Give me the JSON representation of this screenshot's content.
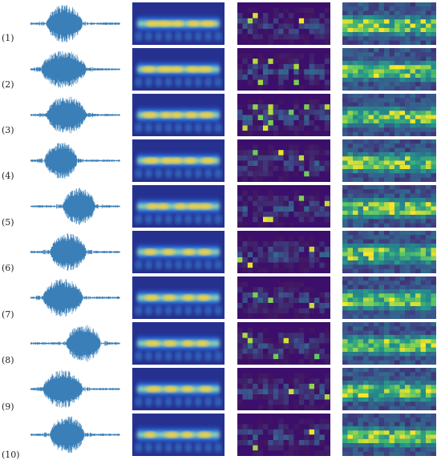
{
  "figure": {
    "rows": [
      {
        "label": "(1)"
      },
      {
        "label": "(2)"
      },
      {
        "label": "(3)"
      },
      {
        "label": "(4)"
      },
      {
        "label": "(5)"
      },
      {
        "label": "(6)"
      },
      {
        "label": "(7)"
      },
      {
        "label": "(8)"
      },
      {
        "label": "(9)"
      },
      {
        "label": "(10)"
      }
    ],
    "columns": [
      {
        "kind": "waveform",
        "color": "#3a7fb8"
      },
      {
        "kind": "scalogram",
        "colormap": "jet-like"
      },
      {
        "kind": "feature-map-sparse",
        "colormap": "viridis"
      },
      {
        "kind": "feature-map-dense",
        "colormap": "viridis"
      }
    ]
  }
}
